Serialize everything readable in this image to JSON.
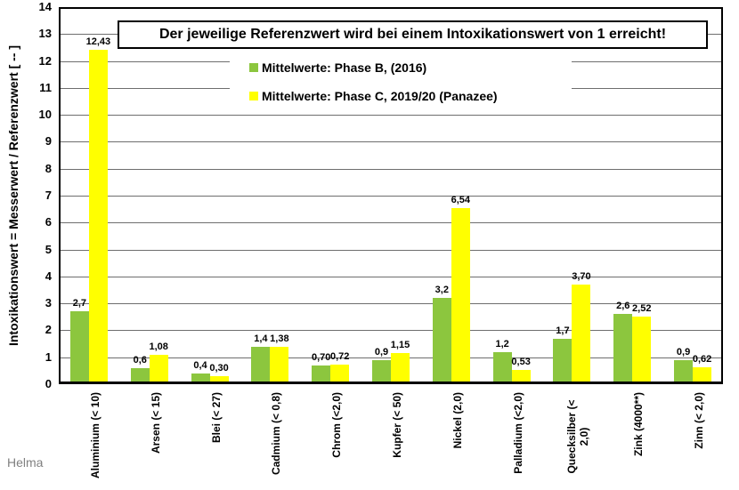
{
  "page": {
    "footer": "Helma"
  },
  "chart_data": {
    "type": "bar",
    "title": "Der jeweilige Referenzwert wird bei einem Intoxikationswert von 1 erreicht!",
    "xlabel": "",
    "ylabel": "Intoxikationswert = Messerwert / Referenzwert [ -- ]",
    "ylim": [
      0,
      14
    ],
    "ytick_step": 1,
    "grid": true,
    "legend_position": "top-center",
    "categories": [
      "Aluminium (< 10)",
      "Arsen (< 15)",
      "Blei (< 27)",
      "Cadmium (< 0,8)",
      "Chrom (<2,0)",
      "Kupfer (< 50)",
      "Nickel (2,0)",
      "Palladium (<2,0)",
      "Quecksilber (<\n2,0)",
      "Zink (4000**)",
      "Zinn (< 2,0)"
    ],
    "series": [
      {
        "name": "Mittelwerte: Phase B, (2016)",
        "color": "#8CC63E",
        "values": [
          2.7,
          0.6,
          0.4,
          1.4,
          0.7,
          0.9,
          3.2,
          1.2,
          1.7,
          2.6,
          0.9
        ],
        "labels": [
          "2,7",
          "0,6",
          "0,4",
          "1,4",
          "0,70",
          "0,9",
          "3,2",
          "1,2",
          "1,7",
          "2,6",
          "0,9"
        ]
      },
      {
        "name": "Mittelwerte: Phase C, 2019/20 (Panazee)",
        "color": "#FFFF00",
        "values": [
          12.43,
          1.08,
          0.3,
          1.38,
          0.72,
          1.15,
          6.54,
          0.53,
          3.7,
          2.52,
          0.62
        ],
        "labels": [
          "12,43",
          "1,08",
          "0,30",
          "1,38",
          "0,72",
          "1,15",
          "6,54",
          "0,53",
          "3,70",
          "2,52",
          "0,62"
        ]
      }
    ]
  }
}
